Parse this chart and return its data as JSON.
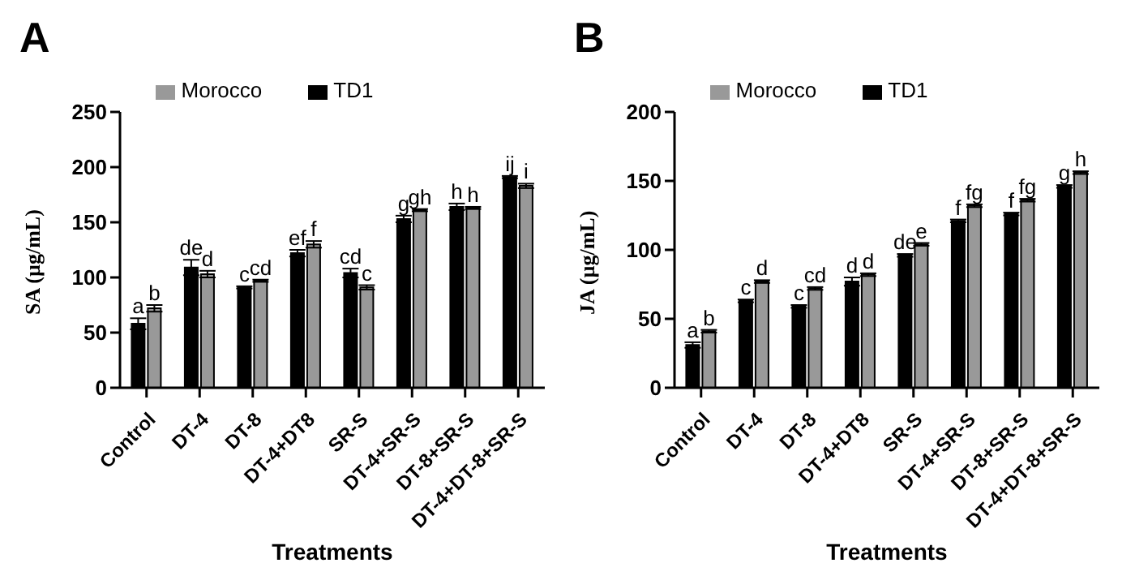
{
  "chart_data": [
    {
      "type": "bar",
      "title": "A",
      "xlabel": "Treatments",
      "ylabel": "SA (µg/mL)",
      "categories": [
        "Control",
        "DT-4",
        "DT-8",
        "DT-4+DT8",
        "SR-S",
        "DT-4+SR-S",
        "DT-8+SR-S",
        "DT-4+DT-8+SR-S"
      ],
      "series": [
        {
          "name": "TD1",
          "color": "#000000",
          "values": [
            58,
            109,
            91,
            122,
            104,
            153,
            164,
            191
          ],
          "errors": [
            5,
            7,
            1,
            3,
            4,
            3,
            3,
            1
          ],
          "value_labels": [
            "a",
            "de",
            "c",
            "ef",
            "cd",
            "g",
            "h",
            "ij"
          ]
        },
        {
          "name": "Morocco",
          "color": "#999999",
          "values": [
            72,
            103,
            97,
            130,
            91,
            161,
            163,
            183
          ],
          "errors": [
            3,
            3,
            1,
            3,
            2,
            1,
            1,
            2
          ],
          "value_labels": [
            "b",
            "d",
            "cd",
            "f",
            "c",
            "gh",
            "h",
            "i"
          ]
        }
      ],
      "ylim": [
        0,
        250
      ],
      "yticks": [
        0,
        50,
        100,
        150,
        200,
        250
      ],
      "grid": false,
      "legend": "top"
    },
    {
      "type": "bar",
      "title": "B",
      "xlabel": "Treatments",
      "ylabel": "JA (µg/mL)",
      "categories": [
        "Control",
        "DT-4",
        "DT-8",
        "DT-4+DT8",
        "SR-S",
        "DT-4+SR-S",
        "DT-8+SR-S",
        "DT-4+DT-8+SR-S"
      ],
      "series": [
        {
          "name": "TD1",
          "color": "#000000",
          "values": [
            31,
            63,
            59,
            77,
            96,
            121,
            126,
            146
          ],
          "errors": [
            2,
            1,
            1,
            3,
            1,
            1,
            1,
            1
          ],
          "value_labels": [
            "a",
            "c",
            "c",
            "d",
            "de",
            "f",
            "f",
            "g"
          ]
        },
        {
          "name": "Morocco",
          "color": "#999999",
          "values": [
            41,
            77,
            72,
            82,
            104,
            132,
            136,
            156
          ],
          "errors": [
            1,
            1,
            1,
            1,
            1,
            1,
            1,
            1
          ],
          "value_labels": [
            "b",
            "d",
            "cd",
            "d",
            "e",
            "fg",
            "fg",
            "h"
          ]
        }
      ],
      "ylim": [
        0,
        200
      ],
      "yticks": [
        0,
        50,
        100,
        150,
        200
      ],
      "grid": false,
      "legend": "top"
    }
  ]
}
